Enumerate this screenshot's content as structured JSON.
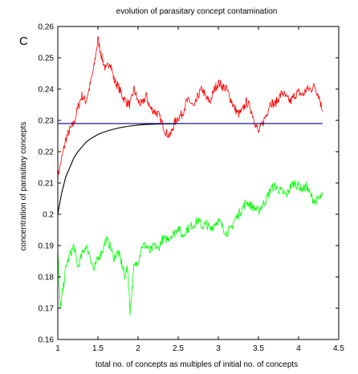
{
  "chart_data": {
    "type": "line",
    "title": "evolution of parasitary concept contamination",
    "panel_label": "C",
    "xlabel": "total no. of concepts as multiples of initial no. of concepts",
    "ylabel": "concentration of parasitary concepts",
    "xlim": [
      1,
      4.5
    ],
    "ylim": [
      0.16,
      0.26
    ],
    "xticks": [
      1,
      1.5,
      2,
      2.5,
      3,
      3.5,
      4,
      4.5
    ],
    "xtick_labels": [
      "1",
      "1.5",
      "2",
      "2.5",
      "3",
      "3.5",
      "4",
      "4.5"
    ],
    "yticks": [
      0.16,
      0.17,
      0.18,
      0.19,
      0.2,
      0.21,
      0.22,
      0.23,
      0.24,
      0.25,
      0.26
    ],
    "ytick_labels": [
      "0.16",
      "0.17",
      "0.18",
      "0.19",
      "0.2",
      "0.21",
      "0.22",
      "0.23",
      "0.24",
      "0.25",
      "0.26"
    ],
    "grid": false,
    "series": [
      {
        "color": "#ff0000",
        "x": [
          1.0,
          1.05,
          1.1,
          1.15,
          1.2,
          1.25,
          1.3,
          1.35,
          1.4,
          1.45,
          1.5,
          1.55,
          1.6,
          1.65,
          1.7,
          1.75,
          1.8,
          1.85,
          1.9,
          1.95,
          2.0,
          2.05,
          2.1,
          2.15,
          2.2,
          2.25,
          2.3,
          2.35,
          2.4,
          2.45,
          2.5,
          2.55,
          2.6,
          2.65,
          2.7,
          2.75,
          2.8,
          2.85,
          2.9,
          2.95,
          3.0,
          3.05,
          3.1,
          3.15,
          3.2,
          3.25,
          3.3,
          3.35,
          3.4,
          3.45,
          3.5,
          3.55,
          3.6,
          3.65,
          3.7,
          3.75,
          3.8,
          3.85,
          3.9,
          3.95,
          4.0,
          4.05,
          4.1,
          4.15,
          4.2,
          4.25,
          4.3
        ],
        "y": [
          0.212,
          0.218,
          0.224,
          0.227,
          0.229,
          0.234,
          0.238,
          0.236,
          0.241,
          0.247,
          0.256,
          0.25,
          0.246,
          0.249,
          0.243,
          0.241,
          0.238,
          0.236,
          0.235,
          0.24,
          0.236,
          0.235,
          0.238,
          0.234,
          0.233,
          0.232,
          0.229,
          0.226,
          0.225,
          0.229,
          0.231,
          0.232,
          0.236,
          0.236,
          0.234,
          0.238,
          0.24,
          0.237,
          0.236,
          0.24,
          0.242,
          0.241,
          0.24,
          0.237,
          0.234,
          0.232,
          0.233,
          0.236,
          0.234,
          0.23,
          0.226,
          0.229,
          0.232,
          0.236,
          0.235,
          0.237,
          0.239,
          0.237,
          0.236,
          0.238,
          0.239,
          0.238,
          0.24,
          0.24,
          0.241,
          0.238,
          0.233
        ]
      },
      {
        "color": "#000000",
        "x": [
          1.0,
          1.02,
          1.05,
          1.08,
          1.1,
          1.15,
          1.2,
          1.25,
          1.3,
          1.35,
          1.4,
          1.5,
          1.6,
          1.7,
          1.8,
          1.9,
          2.0,
          2.1,
          2.2,
          2.3,
          2.4,
          2.5
        ],
        "y": [
          0.2,
          0.203,
          0.207,
          0.21,
          0.212,
          0.215,
          0.218,
          0.22,
          0.2215,
          0.223,
          0.224,
          0.2255,
          0.2265,
          0.2272,
          0.2278,
          0.2282,
          0.2285,
          0.2287,
          0.2288,
          0.2289,
          0.2289,
          0.229
        ]
      },
      {
        "color": "#000080",
        "x": [
          1.0,
          4.3
        ],
        "y": [
          0.229,
          0.229
        ]
      },
      {
        "color": "#00ff00",
        "x": [
          1.0,
          1.03,
          1.06,
          1.1,
          1.15,
          1.2,
          1.25,
          1.3,
          1.35,
          1.4,
          1.45,
          1.5,
          1.55,
          1.6,
          1.65,
          1.7,
          1.75,
          1.8,
          1.83,
          1.87,
          1.9,
          1.95,
          2.0,
          2.05,
          2.1,
          2.15,
          2.2,
          2.25,
          2.3,
          2.35,
          2.4,
          2.45,
          2.5,
          2.55,
          2.6,
          2.65,
          2.7,
          2.75,
          2.8,
          2.85,
          2.9,
          2.95,
          3.0,
          3.05,
          3.1,
          3.15,
          3.2,
          3.25,
          3.3,
          3.35,
          3.4,
          3.45,
          3.5,
          3.55,
          3.6,
          3.65,
          3.7,
          3.75,
          3.8,
          3.85,
          3.9,
          3.95,
          4.0,
          4.05,
          4.1,
          4.15,
          4.2,
          4.25,
          4.3
        ],
        "y": [
          0.19,
          0.17,
          0.175,
          0.183,
          0.187,
          0.19,
          0.183,
          0.187,
          0.19,
          0.187,
          0.182,
          0.186,
          0.188,
          0.192,
          0.19,
          0.186,
          0.188,
          0.184,
          0.18,
          0.183,
          0.169,
          0.183,
          0.185,
          0.19,
          0.19,
          0.188,
          0.19,
          0.189,
          0.192,
          0.192,
          0.193,
          0.194,
          0.196,
          0.193,
          0.195,
          0.196,
          0.197,
          0.198,
          0.196,
          0.197,
          0.195,
          0.197,
          0.198,
          0.196,
          0.194,
          0.195,
          0.198,
          0.2,
          0.202,
          0.204,
          0.203,
          0.202,
          0.201,
          0.203,
          0.205,
          0.208,
          0.209,
          0.208,
          0.207,
          0.206,
          0.209,
          0.21,
          0.209,
          0.208,
          0.209,
          0.206,
          0.204,
          0.205,
          0.206
        ]
      }
    ]
  }
}
